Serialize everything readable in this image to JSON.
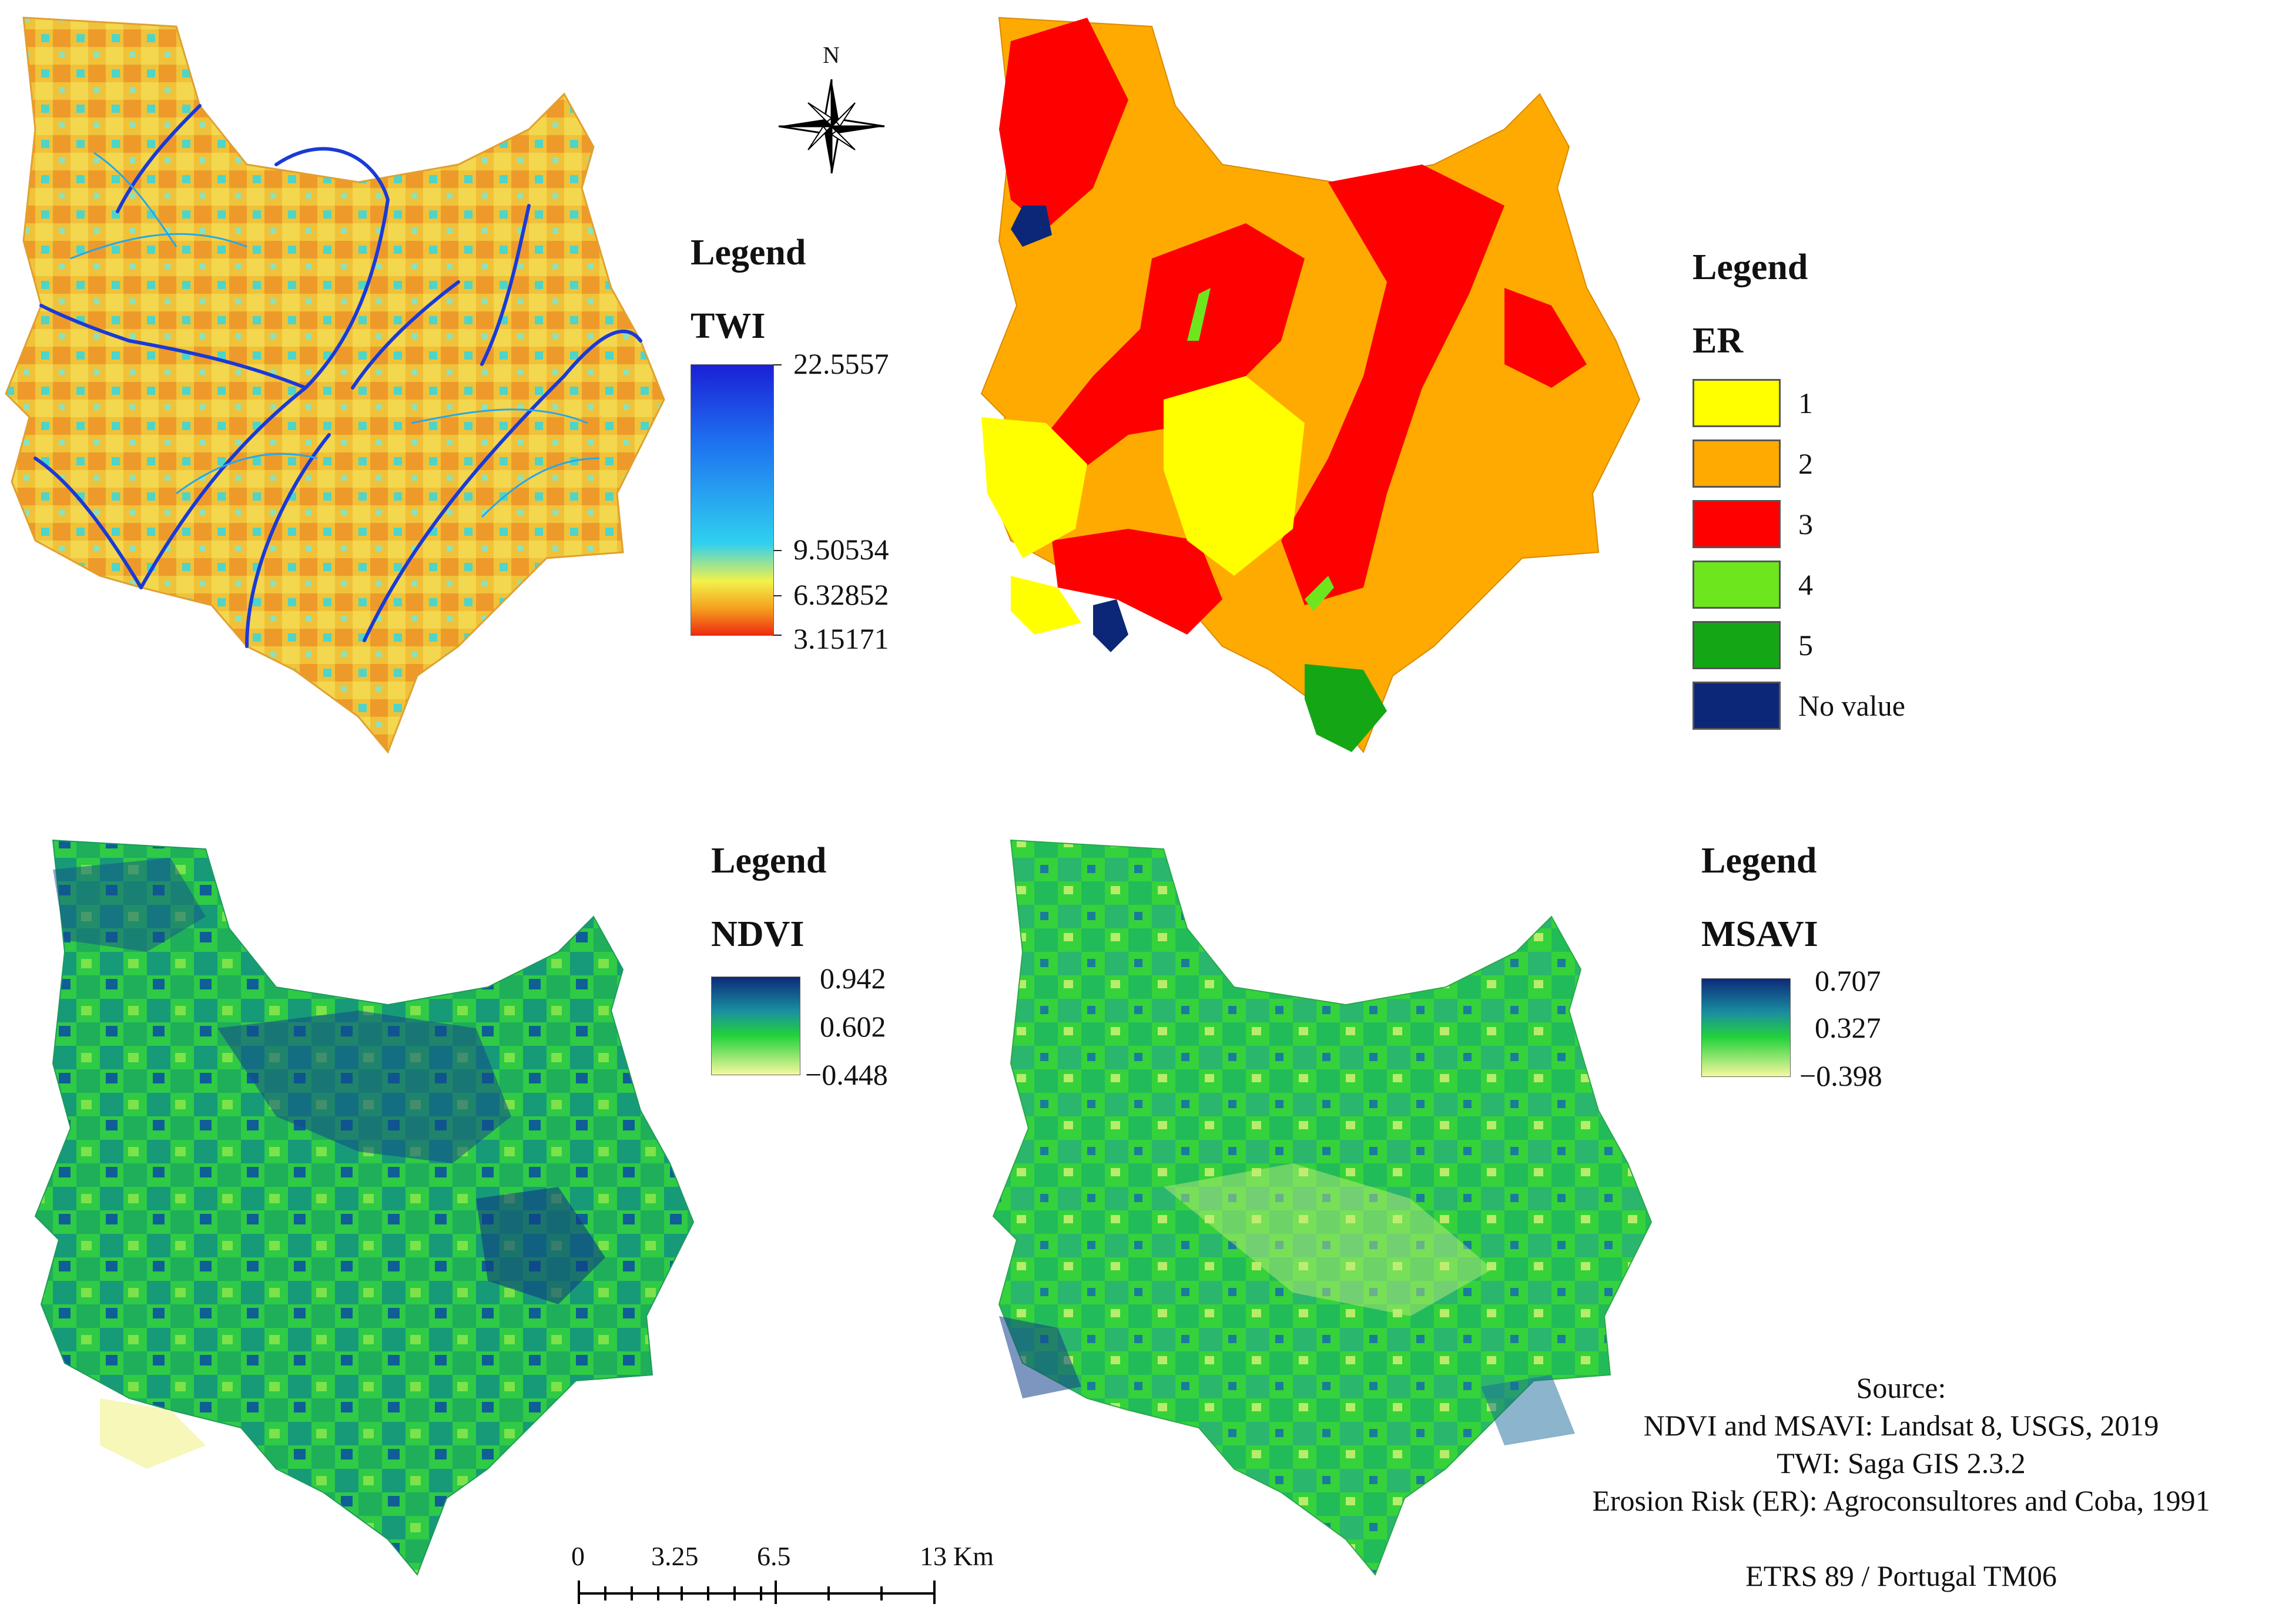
{
  "north_arrow": {
    "label": "N"
  },
  "panels": {
    "twi": {
      "legend_title": "Legend",
      "layer_title": "TWI",
      "ramp_labels": [
        "22.5557",
        "9.50534",
        "6.32852",
        "3.15171"
      ],
      "ramp_colors": [
        "#1a20d6",
        "#1e6ff0",
        "#2fd0ef",
        "#f2f24a",
        "#f5a11e",
        "#ee2a10"
      ]
    },
    "er": {
      "legend_title": "Legend",
      "layer_title": "ER",
      "classes": [
        {
          "label": "1",
          "color": "#ffff00"
        },
        {
          "label": "2",
          "color": "#ffaa00"
        },
        {
          "label": "3",
          "color": "#ff0000"
        },
        {
          "label": "4",
          "color": "#6ee61e"
        },
        {
          "label": "5",
          "color": "#15a615"
        },
        {
          "label": "No value",
          "color": "#0c2777"
        }
      ]
    },
    "ndvi": {
      "legend_title": "Legend",
      "layer_title": "NDVI",
      "ramp_labels": [
        "0.942",
        "0.602",
        "−0.448"
      ],
      "ramp_colors": [
        "#0c2a7a",
        "#1a8fa0",
        "#22d23a",
        "#f7f7a0"
      ]
    },
    "msavi": {
      "legend_title": "Legend",
      "layer_title": "MSAVI",
      "ramp_labels": [
        "0.707",
        "0.327",
        "−0.398"
      ],
      "ramp_colors": [
        "#0c2a7a",
        "#1a8fa0",
        "#22d23a",
        "#f7f7a0"
      ]
    }
  },
  "scale_bar": {
    "labels": [
      "0",
      "3.25",
      "6.5",
      "13"
    ],
    "unit": "Km"
  },
  "source": {
    "heading": "Source:",
    "lines": [
      "NDVI and MSAVI:  Landsat 8, USGS, 2019",
      "TWI: Saga GIS 2.3.2",
      "Erosion Risk (ER): Agroconsultores and Coba, 1991"
    ],
    "crs": "ETRS 89 / Portugal TM06"
  }
}
